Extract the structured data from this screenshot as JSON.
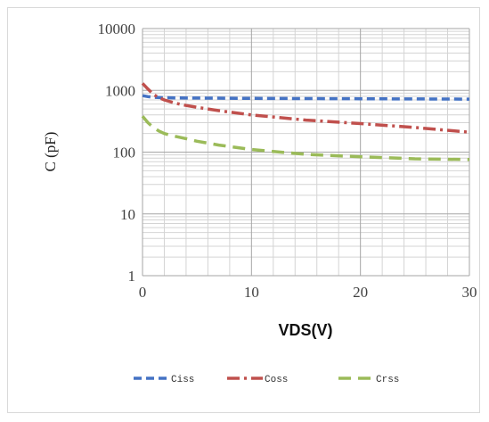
{
  "chart_data": {
    "type": "line",
    "xlabel": "VDS(V)",
    "ylabel": "C (pF)",
    "xlim": [
      0,
      30
    ],
    "ylim": [
      1,
      10000
    ],
    "yscale": "log",
    "grid": true,
    "legend_position": "bottom",
    "x_ticks": [
      "0",
      "10",
      "20",
      "30"
    ],
    "y_ticks": [
      "1",
      "10",
      "100",
      "1000",
      "10000"
    ],
    "series": [
      {
        "name": "Ciss",
        "color": "#4472C4",
        "dash": "dashed",
        "x": [
          0,
          0.5,
          1,
          2,
          3,
          5,
          10,
          15,
          20,
          25,
          30
        ],
        "y": [
          820,
          790,
          770,
          760,
          755,
          750,
          740,
          735,
          730,
          725,
          720
        ]
      },
      {
        "name": "Coss",
        "color": "#C0504D",
        "dash": "dash-dot",
        "x": [
          0,
          0.5,
          1,
          1.5,
          2,
          3,
          4,
          5,
          7,
          10,
          15,
          20,
          25,
          30
        ],
        "y": [
          1300,
          1050,
          860,
          760,
          700,
          620,
          570,
          530,
          470,
          400,
          330,
          290,
          250,
          210
        ]
      },
      {
        "name": "Crss",
        "color": "#9BBB59",
        "dash": "long-dash",
        "x": [
          0,
          0.5,
          1,
          1.5,
          2,
          3,
          4,
          5,
          7,
          10,
          15,
          20,
          25,
          30
        ],
        "y": [
          380,
          300,
          250,
          220,
          200,
          180,
          165,
          150,
          130,
          110,
          92,
          84,
          78,
          76
        ]
      }
    ]
  }
}
